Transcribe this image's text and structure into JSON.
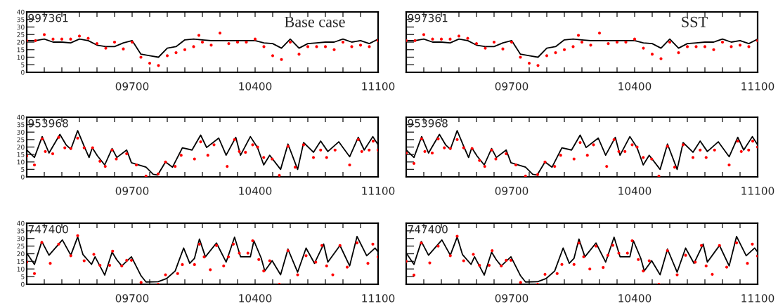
{
  "chart_data": [
    {
      "type": "line",
      "title": "997361",
      "annotations": [
        "Base case"
      ],
      "xlim": [
        9100,
        11100
      ],
      "xticks": [
        {
          "value": 9100,
          "label": null
        },
        {
          "value": 9200,
          "label": null
        },
        {
          "value": 9300,
          "label": null
        },
        {
          "value": 9400,
          "label": null
        },
        {
          "value": 9500,
          "label": null
        },
        {
          "value": 9600,
          "label": null
        },
        {
          "value": 9700,
          "label": "09700"
        },
        {
          "value": 9800,
          "label": null
        },
        {
          "value": 9900,
          "label": null
        },
        {
          "value": 10000,
          "label": null
        },
        {
          "value": 10100,
          "label": null
        },
        {
          "value": 10200,
          "label": null
        },
        {
          "value": 10300,
          "label": null
        },
        10400,
        {
          "value": 10500,
          "label": null
        },
        {
          "value": 10600,
          "label": null
        },
        {
          "value": 10700,
          "label": null
        },
        {
          "value": 10800,
          "label": null
        },
        {
          "value": 10900,
          "label": null
        },
        {
          "value": 11000,
          "label": null
        },
        11100
      ],
      "ylim": [
        0,
        40
      ],
      "yticks": [
        0,
        5,
        10,
        15,
        20,
        25,
        30,
        35,
        40
      ],
      "series": [
        {
          "type": "line",
          "color": "#000000",
          "x": [
            9100,
            9150,
            9200,
            9250,
            9300,
            9350,
            9400,
            9450,
            9500,
            9550,
            9600,
            9650,
            9700,
            9750,
            9800,
            9850,
            9900,
            9950,
            10000,
            10050,
            10100,
            10150,
            10200,
            10250,
            10300,
            10350,
            10400,
            10450,
            10500,
            10550,
            10600,
            10650,
            10700,
            10750,
            10800,
            10850,
            10900,
            10950,
            11000,
            11050,
            11100
          ],
          "values": [
            21,
            21,
            22,
            20,
            20,
            19.5,
            22,
            21,
            18,
            17,
            17,
            19.5,
            21,
            12,
            11,
            10,
            16,
            17,
            21.5,
            22,
            21.5,
            21,
            21,
            21,
            21,
            21,
            21,
            19.5,
            19,
            16,
            22,
            16,
            19,
            19.5,
            20,
            20,
            22,
            20,
            21,
            19,
            22
          ]
        },
        {
          "type": "scatter",
          "color": "#ff0000",
          "marker": "circle",
          "x": [
            9100,
            9150,
            9200,
            9250,
            9300,
            9350,
            9400,
            9450,
            9500,
            9550,
            9600,
            9650,
            9700,
            9750,
            9800,
            9850,
            9900,
            9950,
            10000,
            10050,
            10080,
            10100,
            10150,
            10200,
            10250,
            10300,
            10350,
            10400,
            10450,
            10500,
            10550,
            10600,
            10650,
            10700,
            10750,
            10800,
            10850,
            10900,
            10950,
            11000,
            11050,
            11100
          ],
          "values": [
            21,
            21,
            25,
            22,
            22,
            22,
            24,
            22.5,
            19,
            16,
            20,
            15.5,
            20,
            10,
            6,
            4.5,
            11,
            13,
            15,
            17,
            24.5,
            20,
            18,
            26,
            19,
            20,
            20,
            22,
            17,
            11,
            8.5,
            20,
            12,
            17,
            17,
            17,
            15,
            20,
            17,
            18,
            17,
            21
          ]
        }
      ]
    },
    {
      "type": "line",
      "title": "997361",
      "annotations": [
        "SST"
      ],
      "tick_labels": "x",
      "xlim": [
        9100,
        11100
      ],
      "xticks": [
        {
          "value": 9100,
          "label": null
        },
        {
          "value": 9200,
          "label": null
        },
        {
          "value": 9300,
          "label": null
        },
        {
          "value": 9400,
          "label": null
        },
        {
          "value": 9500,
          "label": null
        },
        {
          "value": 9600,
          "label": null
        },
        {
          "value": 9700,
          "label": "09700"
        },
        {
          "value": 9800,
          "label": null
        },
        {
          "value": 9900,
          "label": null
        },
        {
          "value": 10000,
          "label": null
        },
        {
          "value": 10100,
          "label": null
        },
        {
          "value": 10200,
          "label": null
        },
        {
          "value": 10300,
          "label": null
        },
        10400,
        {
          "value": 10500,
          "label": null
        },
        {
          "value": 10600,
          "label": null
        },
        {
          "value": 10700,
          "label": null
        },
        {
          "value": 10800,
          "label": null
        },
        {
          "value": 10900,
          "label": null
        },
        {
          "value": 11000,
          "label": null
        },
        11100
      ],
      "ylim": [
        0,
        40
      ],
      "yticks": [
        0,
        5,
        10,
        15,
        20,
        25,
        30,
        35,
        40
      ],
      "series": [
        {
          "type": "line",
          "color": "#000000",
          "x": [
            9100,
            9150,
            9200,
            9250,
            9300,
            9350,
            9400,
            9450,
            9500,
            9550,
            9600,
            9650,
            9700,
            9750,
            9800,
            9850,
            9900,
            9950,
            10000,
            10050,
            10100,
            10150,
            10200,
            10250,
            10300,
            10350,
            10400,
            10450,
            10500,
            10550,
            10600,
            10650,
            10700,
            10750,
            10800,
            10850,
            10900,
            10950,
            11000,
            11050,
            11100
          ],
          "values": [
            21,
            21,
            22,
            20,
            20,
            19.5,
            22,
            21,
            18,
            17,
            17,
            19.5,
            21,
            12,
            11,
            10,
            16,
            17,
            21.5,
            22,
            21.5,
            21,
            21,
            21,
            21,
            21,
            21,
            19.5,
            19,
            16,
            22,
            16,
            19,
            19.5,
            20,
            20,
            22,
            20,
            21,
            19,
            22
          ]
        },
        {
          "type": "scatter",
          "color": "#ff0000",
          "marker": "circle",
          "x": [
            9100,
            9150,
            9200,
            9250,
            9300,
            9350,
            9400,
            9450,
            9500,
            9550,
            9600,
            9650,
            9700,
            9750,
            9800,
            9850,
            9900,
            9950,
            10000,
            10050,
            10080,
            10100,
            10150,
            10200,
            10250,
            10300,
            10350,
            10400,
            10450,
            10500,
            10550,
            10600,
            10650,
            10700,
            10750,
            10800,
            10850,
            10900,
            10950,
            11000,
            11050,
            11100
          ],
          "values": [
            21,
            21,
            25,
            22,
            22,
            22,
            24,
            22.5,
            19,
            16,
            20,
            15.5,
            20,
            10,
            6,
            4.5,
            11,
            13,
            15,
            17,
            24.5,
            20,
            18,
            26,
            19,
            20,
            20,
            22,
            16,
            12,
            9,
            20,
            13,
            17,
            17,
            17,
            15,
            20,
            17,
            18,
            17,
            21
          ]
        }
      ]
    },
    {
      "type": "line",
      "title": "953968",
      "xlim": [
        9100,
        11100
      ],
      "xticks": [
        {
          "value": 9100,
          "label": null
        },
        {
          "value": 9200,
          "label": null
        },
        {
          "value": 9300,
          "label": null
        },
        {
          "value": 9400,
          "label": null
        },
        {
          "value": 9500,
          "label": null
        },
        {
          "value": 9600,
          "label": null
        },
        {
          "value": 9700,
          "label": "09700"
        },
        {
          "value": 9800,
          "label": null
        },
        {
          "value": 9900,
          "label": null
        },
        {
          "value": 10000,
          "label": null
        },
        {
          "value": 10100,
          "label": null
        },
        {
          "value": 10200,
          "label": null
        },
        {
          "value": 10300,
          "label": null
        },
        10400,
        {
          "value": 10500,
          "label": null
        },
        {
          "value": 10600,
          "label": null
        },
        {
          "value": 10700,
          "label": null
        },
        {
          "value": 10800,
          "label": null
        },
        {
          "value": 10900,
          "label": null
        },
        {
          "value": 11000,
          "label": null
        },
        11100
      ],
      "ylim": [
        0,
        40
      ],
      "yticks": [
        0,
        5,
        10,
        15,
        20,
        25,
        30,
        35,
        40
      ],
      "series": [
        {
          "type": "line",
          "color": "#000000",
          "x": [
            9100,
            9144,
            9188,
            9227,
            9289,
            9324,
            9351,
            9390,
            9427,
            9455,
            9473,
            9503,
            9544,
            9586,
            9613,
            9669,
            9696,
            9779,
            9820,
            9845,
            9890,
            9930,
            9986,
            10041,
            10090,
            10124,
            10193,
            10235,
            10290,
            10317,
            10373,
            10414,
            10449,
            10483,
            10545,
            10587,
            10642,
            10676,
            10732,
            10773,
            10814,
            10876,
            10938,
            10987,
            11021,
            11070,
            11100
          ],
          "values": [
            18,
            13,
            27,
            16,
            28.5,
            21.5,
            18.5,
            31,
            20.5,
            13,
            19.5,
            14,
            8,
            19,
            13,
            18,
            9.5,
            6.5,
            1.7,
            1.2,
            10,
            6.5,
            19.5,
            18,
            28,
            19.7,
            26,
            14.5,
            26.5,
            14.5,
            27,
            19.5,
            8,
            14.5,
            5,
            22,
            5,
            23,
            16.5,
            24,
            17,
            23.5,
            13.5,
            26.5,
            18,
            27,
            21.5
          ]
        },
        {
          "type": "scatter",
          "color": "#ff0000",
          "marker": "circle",
          "x": [
            9100,
            9144,
            9188,
            9206,
            9248,
            9282,
            9317,
            9351,
            9390,
            9427,
            9475,
            9517,
            9547,
            9586,
            9610,
            9669,
            9724,
            9779,
            9848,
            9890,
            9945,
            9979,
            10055,
            10090,
            10131,
            10166,
            10241,
            10283,
            10310,
            10345,
            10386,
            10414,
            10449,
            10497,
            10538,
            10587,
            10628,
            10676,
            10732,
            10773,
            10807,
            10855,
            10938,
            10987,
            11007,
            11049,
            11072,
            11100
          ],
          "values": [
            14,
            8,
            25.5,
            17,
            15.5,
            26.5,
            19.5,
            19,
            26,
            19.5,
            19.5,
            10.5,
            7,
            18,
            12,
            15.5,
            8,
            0.5,
            2,
            10,
            7,
            14.5,
            12,
            23.5,
            14.5,
            21.5,
            7,
            25,
            17,
            16.5,
            21.5,
            20,
            13,
            12,
            1,
            20.5,
            6.5,
            21.5,
            13,
            18,
            13,
            18,
            8,
            25,
            17,
            18,
            24,
            18
          ]
        }
      ]
    },
    {
      "type": "line",
      "title": "953968",
      "tick_labels": "x",
      "xlim": [
        9100,
        11100
      ],
      "xticks": [
        {
          "value": 9100,
          "label": null
        },
        {
          "value": 9200,
          "label": null
        },
        {
          "value": 9300,
          "label": null
        },
        {
          "value": 9400,
          "label": null
        },
        {
          "value": 9500,
          "label": null
        },
        {
          "value": 9600,
          "label": null
        },
        {
          "value": 9700,
          "label": "09700"
        },
        {
          "value": 9800,
          "label": null
        },
        {
          "value": 9900,
          "label": null
        },
        {
          "value": 10000,
          "label": null
        },
        {
          "value": 10100,
          "label": null
        },
        {
          "value": 10200,
          "label": null
        },
        {
          "value": 10300,
          "label": null
        },
        10400,
        {
          "value": 10500,
          "label": null
        },
        {
          "value": 10600,
          "label": null
        },
        {
          "value": 10700,
          "label": null
        },
        {
          "value": 10800,
          "label": null
        },
        {
          "value": 10900,
          "label": null
        },
        {
          "value": 11000,
          "label": null
        },
        11100
      ],
      "ylim": [
        0,
        40
      ],
      "yticks": [
        0,
        5,
        10,
        15,
        20,
        25,
        30,
        35,
        40
      ],
      "series": [
        {
          "type": "line",
          "color": "#000000",
          "x": [
            9100,
            9144,
            9188,
            9227,
            9289,
            9324,
            9351,
            9390,
            9427,
            9455,
            9473,
            9503,
            9544,
            9586,
            9613,
            9669,
            9696,
            9779,
            9820,
            9845,
            9890,
            9930,
            9986,
            10041,
            10090,
            10124,
            10193,
            10235,
            10290,
            10317,
            10373,
            10414,
            10449,
            10483,
            10545,
            10587,
            10642,
            10676,
            10732,
            10773,
            10814,
            10876,
            10938,
            10987,
            11021,
            11070,
            11100
          ],
          "values": [
            18,
            13,
            27,
            16,
            28.5,
            21.5,
            18.5,
            31,
            20.5,
            13,
            19.5,
            14,
            8,
            19,
            13,
            18,
            9.5,
            6.5,
            1.7,
            1.2,
            10,
            6.5,
            19.5,
            18,
            28,
            19.7,
            26,
            14.5,
            26.5,
            14.5,
            27,
            19.5,
            8,
            14.5,
            5,
            22,
            5,
            23,
            16.5,
            24,
            17,
            23.5,
            13.5,
            26.5,
            18,
            27,
            21.5
          ]
        },
        {
          "type": "scatter",
          "color": "#ff0000",
          "marker": "circle",
          "x": [
            9100,
            9144,
            9188,
            9206,
            9248,
            9282,
            9317,
            9351,
            9390,
            9427,
            9475,
            9517,
            9547,
            9586,
            9610,
            9669,
            9724,
            9779,
            9848,
            9890,
            9945,
            9979,
            10055,
            10090,
            10131,
            10166,
            10241,
            10283,
            10310,
            10345,
            10386,
            10414,
            10449,
            10497,
            10538,
            10587,
            10628,
            10676,
            10732,
            10773,
            10807,
            10855,
            10938,
            10987,
            11007,
            11049,
            11072,
            11100
          ],
          "values": [
            16,
            9,
            25.5,
            17,
            16,
            25.5,
            19.5,
            19,
            25,
            19.5,
            19,
            11,
            7,
            18,
            12,
            15.5,
            8,
            0.5,
            1.5,
            10,
            7,
            14.5,
            12,
            23,
            14.5,
            21.5,
            7,
            25,
            17,
            17,
            21.5,
            20,
            13,
            12,
            0.5,
            20.5,
            6.5,
            21.5,
            13,
            18,
            13,
            18,
            8,
            24,
            17,
            18,
            24,
            20
          ]
        }
      ]
    },
    {
      "type": "line",
      "title": "747400",
      "xlim": [
        9100,
        11100
      ],
      "xticks": [
        {
          "value": 9100,
          "label": null
        },
        {
          "value": 9200,
          "label": null
        },
        {
          "value": 9300,
          "label": null
        },
        {
          "value": 9400,
          "label": null
        },
        {
          "value": 9500,
          "label": null
        },
        {
          "value": 9600,
          "label": null
        },
        {
          "value": 9700,
          "label": "09700"
        },
        {
          "value": 9800,
          "label": null
        },
        {
          "value": 9900,
          "label": null
        },
        {
          "value": 10000,
          "label": null
        },
        {
          "value": 10100,
          "label": null
        },
        {
          "value": 10200,
          "label": null
        },
        {
          "value": 10300,
          "label": null
        },
        10400,
        {
          "value": 10500,
          "label": null
        },
        {
          "value": 10600,
          "label": null
        },
        {
          "value": 10700,
          "label": null
        },
        {
          "value": 10800,
          "label": null
        },
        {
          "value": 10900,
          "label": null
        },
        {
          "value": 11000,
          "label": null
        },
        11100
      ],
      "ylim": [
        0,
        40
      ],
      "yticks": [
        0,
        5,
        10,
        15,
        20,
        25,
        30,
        35,
        40
      ],
      "series": [
        {
          "type": "line",
          "color": "#000000",
          "x": [
            9100,
            9144,
            9186,
            9227,
            9303,
            9351,
            9390,
            9420,
            9469,
            9489,
            9544,
            9586,
            9613,
            9641,
            9696,
            9751,
            9779,
            9848,
            9896,
            9945,
            9993,
            10028,
            10055,
            10083,
            10117,
            10180,
            10235,
            10283,
            10317,
            10373,
            10393,
            10435,
            10455,
            10497,
            10545,
            10587,
            10642,
            10690,
            10738,
            10790,
            10814,
            10883,
            10938,
            10980,
            11035,
            11083,
            11100
          ],
          "values": [
            20.5,
            13,
            28,
            19,
            29,
            19,
            31,
            19.5,
            13,
            18,
            6,
            21,
            16,
            12,
            18,
            5.5,
            1.5,
            1.7,
            3.7,
            8.7,
            23.7,
            13.7,
            17,
            29.6,
            18,
            27,
            14.5,
            30.8,
            18,
            18,
            28.5,
            17,
            8.7,
            15.4,
            6.2,
            23,
            7.9,
            23.7,
            13.7,
            26.3,
            14.5,
            25.4,
            12,
            31.3,
            18.7,
            23.7,
            21.2
          ]
        },
        {
          "type": "scatter",
          "color": "#ff0000",
          "marker": "circle",
          "x": [
            9100,
            9144,
            9186,
            9234,
            9282,
            9351,
            9390,
            9427,
            9482,
            9517,
            9572,
            9589,
            9641,
            9669,
            9696,
            9751,
            9848,
            9890,
            9959,
            9986,
            10055,
            10083,
            10110,
            10145,
            10180,
            10221,
            10248,
            10276,
            10310,
            10359,
            10386,
            10421,
            10449,
            10483,
            10538,
            10587,
            10642,
            10690,
            10745,
            10780,
            10807,
            10842,
            10883,
            10924,
            10980,
            11042,
            11070,
            11100
          ],
          "values": [
            14.5,
            7,
            27.4,
            13.7,
            26.3,
            18.7,
            31.8,
            15.4,
            19.6,
            12.4,
            12.4,
            21.7,
            12,
            15.7,
            15.7,
            1.2,
            0,
            6.2,
            7,
            12.9,
            12.9,
            26.3,
            17.9,
            9.5,
            25.4,
            12,
            17.9,
            26.3,
            20.4,
            20.4,
            28.5,
            16.2,
            8.7,
            15.4,
            0,
            22,
            6.2,
            18.7,
            14.5,
            25.4,
            12,
            6.2,
            25.4,
            11.2,
            27.1,
            13.7,
            26.3,
            17.9
          ]
        }
      ]
    },
    {
      "type": "line",
      "title": "747400",
      "tick_labels": "x",
      "xlim": [
        9100,
        11100
      ],
      "xticks": [
        {
          "value": 9100,
          "label": null
        },
        {
          "value": 9200,
          "label": null
        },
        {
          "value": 9300,
          "label": null
        },
        {
          "value": 9400,
          "label": null
        },
        {
          "value": 9500,
          "label": null
        },
        {
          "value": 9600,
          "label": null
        },
        {
          "value": 9700,
          "label": "09700"
        },
        {
          "value": 9800,
          "label": null
        },
        {
          "value": 9900,
          "label": null
        },
        {
          "value": 10000,
          "label": null
        },
        {
          "value": 10100,
          "label": null
        },
        {
          "value": 10200,
          "label": null
        },
        {
          "value": 10300,
          "label": null
        },
        10400,
        {
          "value": 10500,
          "label": null
        },
        {
          "value": 10600,
          "label": null
        },
        {
          "value": 10700,
          "label": null
        },
        {
          "value": 10800,
          "label": null
        },
        {
          "value": 10900,
          "label": null
        },
        {
          "value": 11000,
          "label": null
        },
        11100
      ],
      "ylim": [
        0,
        40
      ],
      "yticks": [
        0,
        5,
        10,
        15,
        20,
        25,
        30,
        35,
        40
      ],
      "series": [
        {
          "type": "line",
          "color": "#000000",
          "x": [
            9100,
            9144,
            9186,
            9227,
            9303,
            9351,
            9390,
            9420,
            9469,
            9489,
            9544,
            9586,
            9613,
            9641,
            9696,
            9751,
            9779,
            9848,
            9896,
            9945,
            9993,
            10028,
            10055,
            10083,
            10117,
            10180,
            10235,
            10283,
            10317,
            10373,
            10393,
            10435,
            10455,
            10497,
            10545,
            10587,
            10642,
            10690,
            10738,
            10790,
            10814,
            10883,
            10938,
            10980,
            11035,
            11083,
            11100
          ],
          "values": [
            20.5,
            13,
            28,
            19,
            29,
            19,
            31,
            19.5,
            13,
            18,
            6,
            21,
            16,
            12,
            18,
            5.5,
            1.5,
            1.7,
            3.7,
            8.7,
            23.7,
            13.7,
            17,
            29.6,
            18,
            27,
            14.5,
            30.8,
            18,
            18,
            28.5,
            17,
            8.7,
            15.4,
            6.2,
            23,
            7.9,
            23.7,
            13.7,
            26.3,
            14.5,
            25.4,
            12,
            31.3,
            18.7,
            23.7,
            21.2
          ]
        },
        {
          "type": "scatter",
          "color": "#ff0000",
          "marker": "circle",
          "x": [
            9100,
            9144,
            9186,
            9234,
            9282,
            9351,
            9390,
            9427,
            9482,
            9517,
            9572,
            9589,
            9641,
            9669,
            9696,
            9751,
            9848,
            9890,
            9959,
            9986,
            10055,
            10083,
            10110,
            10145,
            10180,
            10221,
            10248,
            10276,
            10310,
            10359,
            10386,
            10421,
            10449,
            10483,
            10538,
            10587,
            10642,
            10690,
            10745,
            10780,
            10807,
            10842,
            10883,
            10924,
            10980,
            11042,
            11070,
            11100
          ],
          "values": [
            15,
            6,
            27,
            14,
            25,
            18.7,
            31.5,
            15.4,
            19.6,
            12.4,
            12.4,
            22,
            12,
            15.7,
            15.7,
            1.2,
            0,
            6.5,
            7,
            13,
            13,
            27,
            18,
            10,
            25,
            11,
            19,
            25.5,
            20.4,
            20.4,
            28.5,
            16.2,
            8.7,
            15.4,
            0,
            22,
            6.2,
            19,
            14.5,
            25.4,
            12,
            6.5,
            25.4,
            11.2,
            27.1,
            13.7,
            26.3,
            18.5
          ]
        }
      ]
    }
  ]
}
